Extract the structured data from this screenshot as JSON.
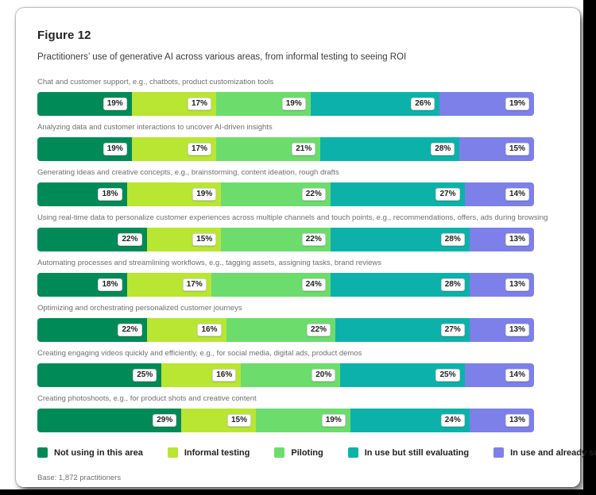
{
  "figure": {
    "title": "Figure 12",
    "subtitle": "Practitioners’ use of generative AI across various areas, from informal testing to seeing ROI",
    "base_note": "Base: 1,872 practitioners"
  },
  "colors": {
    "not_using": "#008a58",
    "informal_testing": "#b9e533",
    "piloting": "#6cdc6d",
    "in_use_evaluating": "#0cb2aa",
    "in_use_roi": "#7c80e8",
    "badge_bg": "#ffffff",
    "badge_text": "#1f1f1f",
    "row_label_text": "#6f6f6f"
  },
  "chart_data": {
    "type": "bar",
    "orientation": "horizontal_stacked",
    "unit": "%",
    "xlim": [
      0,
      100
    ],
    "value_label_format": "{value}%",
    "legend_position": "bottom",
    "grid": false,
    "categories": [
      "Chat and customer support, e.g., chatbots, product customization tools",
      "Analyzing data and customer interactions to uncover AI-driven insights",
      "Generating ideas and creative concepts, e.g., brainstorming, content ideation, rough drafts",
      "Using real-time data to personalize customer experiences across multiple channels and touch points, e.g., recommendations, offers, ads during browsing",
      "Automating processes and streamlining workflows, e.g., tagging assets, assigning tasks, brand reviews",
      "Optimizing and orchestrating personalized customer journeys",
      "Creating engaging videos quickly and efficiently, e.g., for social media, digital ads, product demos",
      "Creating photoshoots, e.g., for product shots and creative content"
    ],
    "series": [
      {
        "name": "Not using in this area",
        "color": "#008a58",
        "values": [
          19,
          19,
          18,
          22,
          18,
          22,
          25,
          29
        ]
      },
      {
        "name": "Informal testing",
        "color": "#b9e533",
        "values": [
          17,
          17,
          19,
          15,
          17,
          16,
          16,
          15
        ]
      },
      {
        "name": "Piloting",
        "color": "#6cdc6d",
        "values": [
          19,
          21,
          22,
          22,
          24,
          22,
          20,
          19
        ]
      },
      {
        "name": "In use but still evaluating",
        "color": "#0cb2aa",
        "values": [
          26,
          28,
          27,
          28,
          28,
          27,
          25,
          24
        ]
      },
      {
        "name": "In use and already seeing ROI",
        "color": "#7c80e8",
        "values": [
          19,
          15,
          14,
          13,
          13,
          13,
          14,
          13
        ]
      }
    ]
  }
}
